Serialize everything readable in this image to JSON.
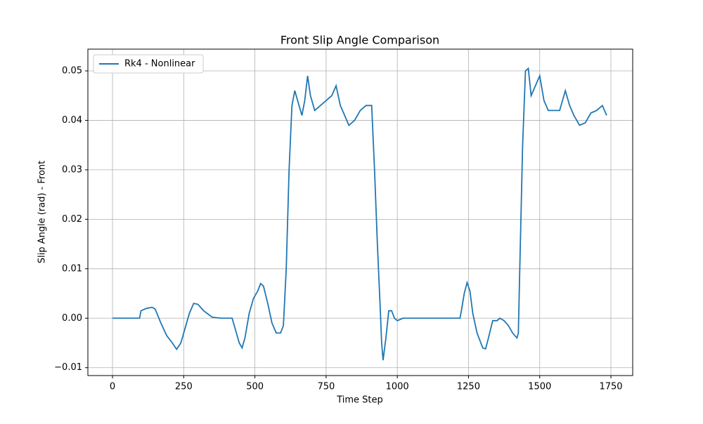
{
  "chart_data": {
    "type": "line",
    "title": "Front Slip Angle Comparison",
    "x_label": "Time Step",
    "y_label": "Slip Angle (rad) - Front",
    "x": [
      0,
      95,
      100,
      120,
      140,
      150,
      170,
      190,
      210,
      225,
      240,
      255,
      270,
      285,
      300,
      320,
      350,
      380,
      420,
      430,
      445,
      455,
      465,
      480,
      495,
      510,
      520,
      530,
      545,
      560,
      575,
      590,
      600,
      610,
      620,
      630,
      640,
      655,
      665,
      675,
      685,
      695,
      710,
      730,
      750,
      770,
      785,
      800,
      815,
      830,
      850,
      870,
      890,
      910,
      920,
      930,
      940,
      945,
      950,
      960,
      970,
      980,
      990,
      1000,
      1020,
      1100,
      1220,
      1225,
      1235,
      1245,
      1255,
      1265,
      1280,
      1300,
      1310,
      1320,
      1335,
      1350,
      1360,
      1375,
      1390,
      1405,
      1420,
      1425,
      1430,
      1440,
      1450,
      1460,
      1470,
      1485,
      1500,
      1515,
      1530,
      1550,
      1570,
      1590,
      1605,
      1620,
      1640,
      1660,
      1680,
      1700,
      1720,
      1735
    ],
    "series": [
      {
        "name": "Rk4 - Nonlinear",
        "color": "#1f77b4",
        "values": [
          0,
          0,
          0.0015,
          0.002,
          0.0022,
          0.0018,
          -0.001,
          -0.0035,
          -0.005,
          -0.0063,
          -0.005,
          -0.002,
          0.001,
          0.003,
          0.0028,
          0.0015,
          0.0002,
          0,
          0,
          -0.002,
          -0.005,
          -0.006,
          -0.004,
          0.001,
          0.004,
          0.0055,
          0.007,
          0.0065,
          0.003,
          -0.001,
          -0.003,
          -0.003,
          -0.0015,
          0.01,
          0.03,
          0.043,
          0.046,
          0.043,
          0.041,
          0.044,
          0.049,
          0.045,
          0.042,
          0.043,
          0.044,
          0.045,
          0.047,
          0.043,
          0.041,
          0.039,
          0.04,
          0.042,
          0.043,
          0.043,
          0.03,
          0.015,
          0.002,
          -0.005,
          -0.0085,
          -0.004,
          0.0015,
          0.0015,
          0,
          -0.0005,
          0,
          0,
          0,
          0.0015,
          0.005,
          0.0072,
          0.0055,
          0.001,
          -0.003,
          -0.006,
          -0.0062,
          -0.004,
          -0.0005,
          -0.0005,
          0,
          -0.0005,
          -0.0015,
          -0.003,
          -0.004,
          -0.003,
          0.01,
          0.035,
          0.05,
          0.0505,
          0.045,
          0.047,
          0.049,
          0.044,
          0.042,
          0.042,
          0.042,
          0.046,
          0.043,
          0.041,
          0.039,
          0.0395,
          0.0415,
          0.042,
          0.043,
          0.041
        ]
      }
    ],
    "xlim": [
      -86.5,
      1826.5
    ],
    "xticks": [
      0,
      250,
      500,
      750,
      1000,
      1250,
      1500,
      1750
    ],
    "ylim": [
      -0.0116,
      0.0544
    ],
    "yticks": [
      {
        "value": -0.01,
        "label": "−0.01"
      },
      {
        "value": 0,
        "label": "0.00"
      },
      {
        "value": 0.01,
        "label": "0.01"
      },
      {
        "value": 0.02,
        "label": "0.02"
      },
      {
        "value": 0.03,
        "label": "0.03"
      },
      {
        "value": 0.04,
        "label": "0.04"
      },
      {
        "value": 0.05,
        "label": "0.05"
      }
    ],
    "grid": true,
    "legend": "upper left"
  }
}
